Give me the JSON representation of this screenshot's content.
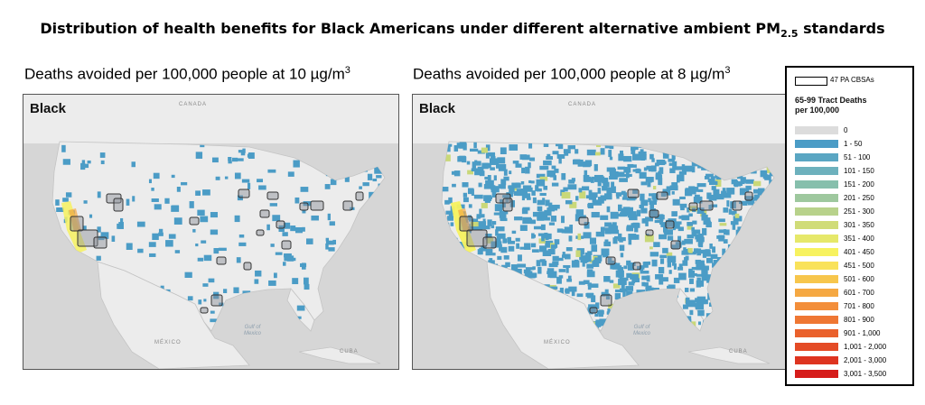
{
  "title": {
    "main": "Distribution of health benefits for Black Americans under different alternative ambient PM",
    "sub": "2.5",
    "tail": " standards"
  },
  "panels": [
    {
      "caption": "Deaths avoided per 100,000 people at 10 µg/m",
      "unit_sup": "3",
      "label": "Black",
      "geo": {
        "canada": "CANADA",
        "mexico": "MÉXICO",
        "gulf1": "Gulf of",
        "gulf2": "Mexico",
        "cuba": "CUBA"
      }
    },
    {
      "caption": "Deaths avoided per 100,000 people at 8 µg/m",
      "unit_sup": "3",
      "label": "Black",
      "geo": {
        "canada": "CANADA",
        "mexico": "MÉXICO",
        "gulf1": "Gulf of",
        "gulf2": "Mexico",
        "cuba": "CUBA"
      }
    }
  ],
  "legend": {
    "outline_label": "47 PA CBSAs",
    "title_line1": "65-99 Tract Deaths",
    "title_line2": "per 100,000",
    "items": [
      {
        "label": "0",
        "color": "#dcdcdc"
      },
      {
        "label": "1 - 50",
        "color": "#4b9cc6"
      },
      {
        "label": "51 - 100",
        "color": "#5aa6c3"
      },
      {
        "label": "101 - 150",
        "color": "#6db1bd"
      },
      {
        "label": "151 - 200",
        "color": "#86bfac"
      },
      {
        "label": "201 - 250",
        "color": "#9ec89e"
      },
      {
        "label": "251 - 300",
        "color": "#b8d28b"
      },
      {
        "label": "301 - 350",
        "color": "#d0dc78"
      },
      {
        "label": "351 - 400",
        "color": "#e6e86a"
      },
      {
        "label": "401 - 450",
        "color": "#f7f25f"
      },
      {
        "label": "451 - 500",
        "color": "#f9e25a"
      },
      {
        "label": "501 - 600",
        "color": "#f7c64c"
      },
      {
        "label": "601 - 700",
        "color": "#f5a842"
      },
      {
        "label": "701 - 800",
        "color": "#f38e3a"
      },
      {
        "label": "801 - 900",
        "color": "#ef7733"
      },
      {
        "label": "901 - 1,000",
        "color": "#ea612c"
      },
      {
        "label": "1,001 - 2,000",
        "color": "#e44b26"
      },
      {
        "label": "2,001 - 3,000",
        "color": "#de3420"
      },
      {
        "label": "3,001 - 3,500",
        "color": "#d61c1a"
      }
    ]
  },
  "colors": {
    "water": "#d6d6d6",
    "land": "#ececec",
    "tract": "#4b9cc6",
    "cbsa_fill": "#8a8f96",
    "cbsa_stroke": "#333333",
    "high": "#f7f25f"
  }
}
